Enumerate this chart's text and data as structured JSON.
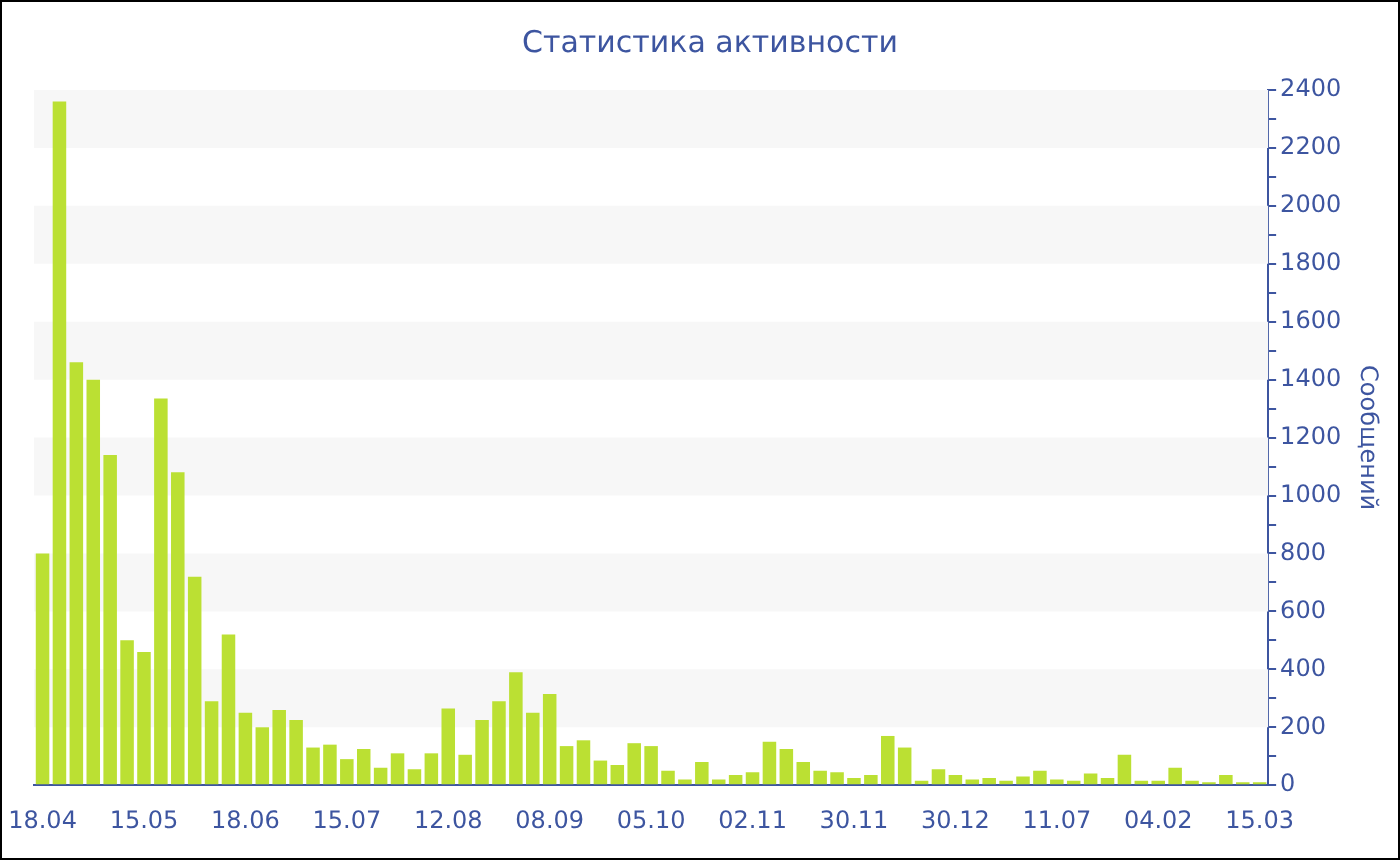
{
  "chart_data": {
    "type": "bar",
    "title": "Статистика активности",
    "ylabel": "Сообщений",
    "categories": [
      "18.04",
      null,
      null,
      null,
      null,
      null,
      "15.05",
      null,
      null,
      null,
      null,
      null,
      "18.06",
      null,
      null,
      null,
      null,
      null,
      "15.07",
      null,
      null,
      null,
      null,
      null,
      "12.08",
      null,
      null,
      null,
      null,
      null,
      "08.09",
      null,
      null,
      null,
      null,
      null,
      "05.10",
      null,
      null,
      null,
      null,
      null,
      "02.11",
      null,
      null,
      null,
      null,
      null,
      "30.11",
      null,
      null,
      null,
      null,
      null,
      "30.12",
      null,
      null,
      null,
      null,
      null,
      "11.07",
      null,
      null,
      null,
      null,
      null,
      "04.02",
      null,
      null,
      null,
      null,
      null,
      "15.03"
    ],
    "values": [
      800,
      2360,
      1460,
      1400,
      1140,
      500,
      460,
      1335,
      1080,
      720,
      290,
      520,
      250,
      200,
      260,
      225,
      130,
      140,
      90,
      125,
      60,
      110,
      55,
      110,
      265,
      105,
      225,
      290,
      390,
      250,
      315,
      135,
      155,
      85,
      70,
      145,
      135,
      50,
      20,
      80,
      20,
      35,
      45,
      150,
      125,
      80,
      50,
      45,
      25,
      35,
      170,
      130,
      15,
      55,
      35,
      20,
      25,
      15,
      30,
      50,
      20,
      15,
      40,
      25,
      105,
      15,
      15,
      60,
      15,
      10,
      35,
      10,
      10
    ],
    "color": "#bbe033",
    "ylim": [
      0,
      2400
    ],
    "yticks": [
      0,
      {
        "value": 100,
        "label": null
      },
      200,
      {
        "value": 300,
        "label": null
      },
      400,
      {
        "value": 500,
        "label": null
      },
      600,
      {
        "value": 700,
        "label": null
      },
      800,
      {
        "value": 900,
        "label": null
      },
      1000,
      {
        "value": 1100,
        "label": null
      },
      1200,
      {
        "value": 1300,
        "label": null
      },
      1400,
      {
        "value": 1500,
        "label": null
      },
      1600,
      {
        "value": 1700,
        "label": null
      },
      1800,
      {
        "value": 1900,
        "label": null
      },
      2000,
      {
        "value": 2100,
        "label": null
      },
      2200,
      {
        "value": 2300,
        "label": null
      },
      2400
    ],
    "bands": [
      {
        "axis": "y",
        "from": 200,
        "to": 400,
        "color": "#f7f7f7"
      },
      {
        "axis": "y",
        "from": 600,
        "to": 800,
        "color": "#f7f7f7"
      },
      {
        "axis": "y",
        "from": 1000,
        "to": 1200,
        "color": "#f7f7f7"
      },
      {
        "axis": "y",
        "from": 1400,
        "to": 1600,
        "color": "#f7f7f7"
      },
      {
        "axis": "y",
        "from": 1800,
        "to": 2000,
        "color": "#f7f7f7"
      },
      {
        "axis": "y",
        "from": 2200,
        "to": 2400,
        "color": "#f7f7f7"
      }
    ]
  }
}
